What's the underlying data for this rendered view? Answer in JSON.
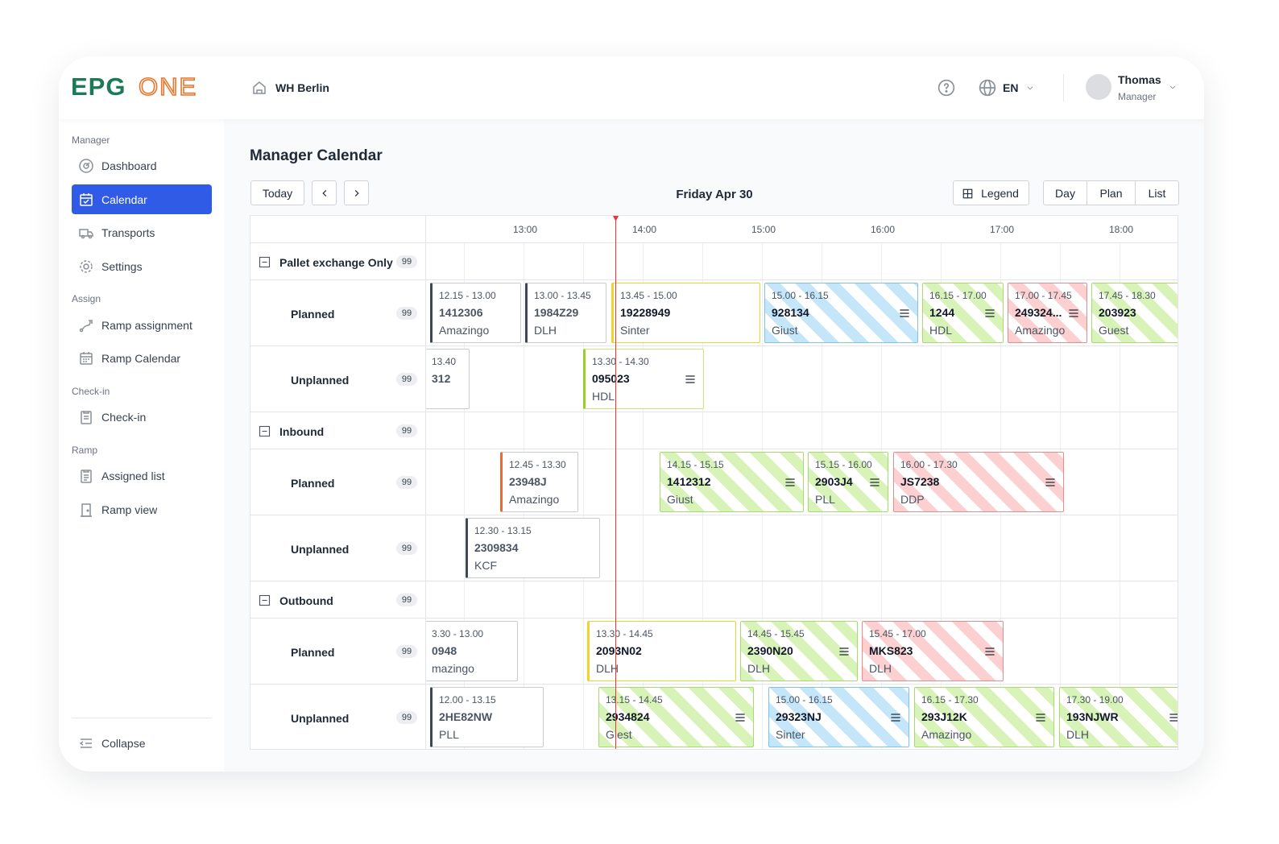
{
  "header": {
    "logo": {
      "primary": "EPG",
      "secondary": "ONE"
    },
    "warehouse": "WH Berlin",
    "language": "EN",
    "user": {
      "name": "Thomas",
      "role": "Manager"
    }
  },
  "sidebar": {
    "sections": [
      {
        "title": "Manager",
        "items": [
          "Dashboard",
          "Calendar",
          "Transports",
          "Settings"
        ]
      },
      {
        "title": "Assign",
        "items": [
          "Ramp assignment",
          "Ramp Calendar"
        ]
      },
      {
        "title": "Check-in",
        "items": [
          "Check-in"
        ]
      },
      {
        "title": "Ramp",
        "items": [
          "Assigned list",
          "Ramp view"
        ]
      }
    ],
    "collapse": "Collapse"
  },
  "main": {
    "title": "Manager Calendar",
    "toolbar": {
      "today": "Today",
      "date": "Friday Apr 30",
      "legend": "Legend",
      "views": [
        "Day",
        "Plan",
        "List"
      ]
    },
    "timeline": {
      "hours": [
        "13:00",
        "14:00",
        "15:00",
        "16:00",
        "17:00",
        "18:00"
      ]
    },
    "groups": [
      {
        "name": "Pallet exchange Only",
        "count": 99,
        "rows": [
          {
            "name": "Planned",
            "count": 99,
            "events": [
              {
                "time": "12.15 - 13.00",
                "id": "1412306",
                "carrier": "Amazingo"
              },
              {
                "time": "13.00 - 13.45",
                "id": "1984Z29",
                "carrier": "DLH"
              },
              {
                "time": "13.45 - 15.00",
                "id": "19228949",
                "carrier": "Sinter"
              },
              {
                "time": "15.00 - 16.15",
                "id": "928134",
                "carrier": "Giust"
              },
              {
                "time": "16.15 - 17.00",
                "id": "1244",
                "carrier": "HDL"
              },
              {
                "time": "17.00 - 17.45",
                "id": "249324...",
                "carrier": "Amazingo"
              },
              {
                "time": "17.45 - 18.30",
                "id": "203923",
                "carrier": "Guest"
              }
            ]
          },
          {
            "name": "Unplanned",
            "count": 99,
            "events": [
              {
                "time": "13.40",
                "id": "312"
              },
              {
                "time": "13.30 - 14.30",
                "id": "095023",
                "carrier": "HDL"
              }
            ]
          }
        ]
      },
      {
        "name": "Inbound",
        "count": 99,
        "rows": [
          {
            "name": "Planned",
            "count": 99,
            "events": [
              {
                "time": "12.45 - 13.30",
                "id": "23948J",
                "carrier": "Amazingo"
              },
              {
                "time": "14.15 - 15.15",
                "id": "1412312",
                "carrier": "Giust"
              },
              {
                "time": "15.15 - 16.00",
                "id": "2903J4",
                "carrier": "PLL"
              },
              {
                "time": "16.00 - 17.30",
                "id": "JS7238",
                "carrier": "DDP"
              }
            ]
          },
          {
            "name": "Unplanned",
            "count": 99,
            "events": [
              {
                "time": "12.30 - 13.15",
                "id": "2309834",
                "carrier": "KCF"
              }
            ]
          }
        ]
      },
      {
        "name": "Outbound",
        "count": 99,
        "rows": [
          {
            "name": "Planned",
            "count": 99,
            "events": [
              {
                "time": "3.30 - 13.00",
                "id": "0948",
                "carrier": "mazingo"
              },
              {
                "time": "13.30 - 14.45",
                "id": "2093N02",
                "carrier": "DLH"
              },
              {
                "time": "14.45 - 15.45",
                "id": "2390N20",
                "carrier": "DLH"
              },
              {
                "time": "15.45 - 17.00",
                "id": "MKS823",
                "carrier": "DLH"
              }
            ]
          },
          {
            "name": "Unplanned",
            "count": 99,
            "events": [
              {
                "time": "12.00 - 13.15",
                "id": "2HE82NW",
                "carrier": "PLL"
              },
              {
                "time": "13.15 - 14.45",
                "id": "2934824",
                "carrier": "Giest"
              },
              {
                "time": "15.00 - 16.15",
                "id": "29323NJ",
                "carrier": "Sinter"
              },
              {
                "time": "16.15 - 17.30",
                "id": "293J12K",
                "carrier": "Amazingo"
              },
              {
                "time": "17.30 - 19.00",
                "id": "193NJWR",
                "carrier": "DLH"
              }
            ]
          }
        ]
      }
    ]
  }
}
